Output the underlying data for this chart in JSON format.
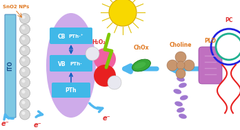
{
  "bg_color": "#ffffff",
  "ito_color": "#7ec8e3",
  "nanoparticle_color": "#d8d8d8",
  "nanoparticle_edge": "#aaaaaa",
  "ellipse_color": "#c8a0e8",
  "cb_box_color": "#40b8e8",
  "label_sno2": "SnO2 NPs",
  "label_ito": "ITO",
  "label_cb": "CB",
  "label_vb": "VB",
  "label_pth1": "PTh·⁺",
  "label_pth2": "PTh·",
  "label_pth3": "PTh",
  "label_h2o2": "H₂O₂",
  "label_chox": "ChOx",
  "label_choline": "Choline",
  "label_pld": "PLD",
  "label_pc": "PC",
  "label_eminus": "e⁻",
  "arrow_color": "#50b8f0",
  "text_orange": "#e07820",
  "text_red": "#e03030",
  "sun_color": "#f8d800",
  "sun_ray_color": "#e0c000",
  "lightning_color": "#80c800",
  "h2o2_red": "#e82020",
  "h2o2_pink": "#f060a0",
  "h2o2_white": "#e8e8f0",
  "choline_brown": "#c8966e",
  "choline_helix": "#9060c8",
  "pld_fill": "#c070c0",
  "pld_stripe": "#d090d0",
  "pc_blue": "#2020e0",
  "pc_teal": "#20b090",
  "pc_tail": "#e82020"
}
